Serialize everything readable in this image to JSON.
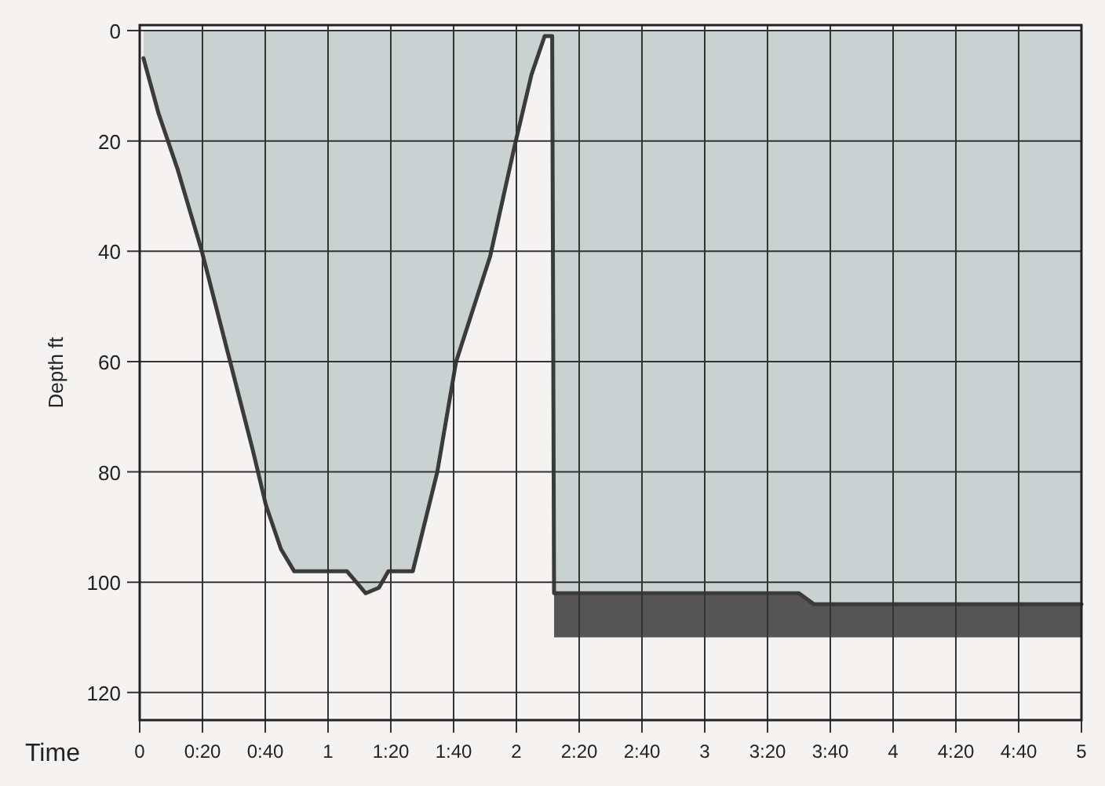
{
  "chart_data": {
    "type": "area",
    "xlabel": "Time",
    "ylabel": "Depth ft",
    "xlim": [
      0,
      5
    ],
    "ylim": [
      125,
      -1
    ],
    "xticks": [
      0,
      {
        "value": 0.3333,
        "label": "0:20"
      },
      {
        "value": 0.6667,
        "label": "0:40"
      },
      1,
      {
        "value": 1.3333,
        "label": "1:20"
      },
      {
        "value": 1.6667,
        "label": "1:40"
      },
      2,
      {
        "value": 2.3333,
        "label": "2:20"
      },
      {
        "value": 2.6667,
        "label": "2:40"
      },
      3,
      {
        "value": 3.3333,
        "label": "3:20"
      },
      {
        "value": 3.6667,
        "label": "3:40"
      },
      4,
      {
        "value": 4.3333,
        "label": "4:20"
      },
      {
        "value": 4.6667,
        "label": "4:40"
      },
      5
    ],
    "yticks": [
      0,
      20,
      40,
      60,
      80,
      100,
      120
    ],
    "grid": true,
    "marker": "none",
    "series": [
      {
        "color": "#555555",
        "x": [
          2.2,
          3.5,
          3.58,
          5
        ],
        "values": [
          110,
          110,
          110,
          110
        ]
      },
      {
        "color": "#c9d1d1",
        "x": [
          0.02,
          0.1,
          0.2,
          0.33,
          0.48,
          0.6,
          0.67,
          0.75,
          0.82,
          1.1,
          1.15,
          1.2,
          1.27,
          1.32,
          1.45,
          1.58,
          1.68,
          1.86,
          1.99,
          2.08,
          2.15,
          2.19,
          2.2,
          3.5,
          3.58,
          5
        ],
        "values": [
          5,
          15,
          25,
          40,
          60,
          76,
          86,
          94,
          98,
          98,
          100,
          102,
          101,
          98,
          98,
          80,
          60,
          41,
          21,
          8,
          1,
          1,
          102,
          102,
          104,
          104
        ]
      }
    ]
  }
}
